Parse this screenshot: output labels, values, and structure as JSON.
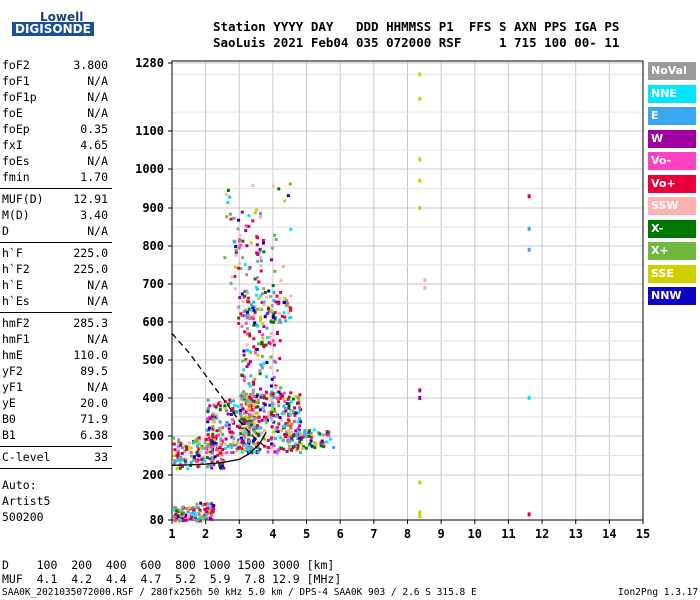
{
  "logo": {
    "line1": "Lowell",
    "line2": "DIGISONDE"
  },
  "header": {
    "line1": "Station YYYY DAY   DDD HHMMSS P1  FFS S AXN PPS IGA PS",
    "line2": "SaoLuis 2021 Feb04 035 072000 RSF     1 715 100 00- 11"
  },
  "params": [
    [
      {
        "name": "foF2",
        "value": "3.800"
      },
      {
        "name": "foF1",
        "value": "N/A"
      },
      {
        "name": "foF1p",
        "value": "N/A"
      },
      {
        "name": "foE",
        "value": "N/A"
      },
      {
        "name": "foEp",
        "value": "0.35"
      },
      {
        "name": "fxI",
        "value": "4.65"
      },
      {
        "name": "foEs",
        "value": "N/A"
      },
      {
        "name": "fmin",
        "value": "1.70"
      }
    ],
    [
      {
        "name": "MUF(D)",
        "value": "12.91"
      },
      {
        "name": "M(D)",
        "value": "3.40"
      },
      {
        "name": "D",
        "value": "N/A"
      }
    ],
    [
      {
        "name": "h`F",
        "value": "225.0"
      },
      {
        "name": "h`F2",
        "value": "225.0"
      },
      {
        "name": "h`E",
        "value": "N/A"
      },
      {
        "name": "h`Es",
        "value": "N/A"
      }
    ],
    [
      {
        "name": "hmF2",
        "value": "285.3"
      },
      {
        "name": "hmF1",
        "value": "N/A"
      },
      {
        "name": "hmE",
        "value": "110.0"
      },
      {
        "name": "yF2",
        "value": "89.5"
      },
      {
        "name": "yF1",
        "value": "N/A"
      },
      {
        "name": "yE",
        "value": "20.0"
      },
      {
        "name": "B0",
        "value": "71.9"
      },
      {
        "name": "B1",
        "value": "6.38"
      }
    ],
    [
      {
        "name": "C-level",
        "value": "33"
      }
    ]
  ],
  "artist": {
    "line1": "Auto:",
    "line2": "Artist5",
    "line3": "500200"
  },
  "legend": [
    {
      "label": "NoVal",
      "color": "#9a9a9a"
    },
    {
      "label": "NNE",
      "color": "#00e6ff"
    },
    {
      "label": "E",
      "color": "#3aa6f0"
    },
    {
      "label": "W",
      "color": "#a000a0"
    },
    {
      "label": "Vo-",
      "color": "#ff40c0"
    },
    {
      "label": "Vo+",
      "color": "#e8003c"
    },
    {
      "label": "SSW",
      "color": "#ffb0b0"
    },
    {
      "label": "X-",
      "color": "#007800"
    },
    {
      "label": "X+",
      "color": "#70b840"
    },
    {
      "label": "SSE",
      "color": "#d0d000"
    },
    {
      "label": "NNW",
      "color": "#1000c0"
    }
  ],
  "bottom_table": {
    "line1": "D    100  200  400  600  800 1000 1500 3000 [km]",
    "line2": "MUF  4.1  4.2  4.4  4.7  5.2  5.9  7.8 12.9 [MHz]"
  },
  "footer": {
    "left": "SAA0K_2021035072000.RSF / 280fx256h 50 kHz 5.0 km / DPS-4 SAA0K 903 / 2.6 S 315.8 E",
    "right": "Ion2Png 1.3.17"
  },
  "chart_data": {
    "type": "scatter",
    "x_ticks": [
      "1",
      "2",
      "3",
      "4",
      "5",
      "6",
      "7",
      "8",
      "9",
      "10",
      "11",
      "12",
      "13",
      "14",
      "15"
    ],
    "y_ticks": [
      "80",
      "200",
      "300",
      "400",
      "500",
      "600",
      "700",
      "800",
      "900",
      "1000",
      "1100",
      "1280"
    ],
    "xlim": [
      1,
      15
    ],
    "y_scale": "piecewise",
    "grid": true,
    "traces": [
      {
        "style": "solid",
        "points": [
          [
            1.0,
            225
          ],
          [
            1.5,
            226
          ],
          [
            2.0,
            228
          ],
          [
            2.5,
            232
          ],
          [
            3.0,
            240
          ],
          [
            3.3,
            255
          ],
          [
            3.6,
            280
          ],
          [
            3.8,
            310
          ]
        ]
      },
      {
        "style": "dashed",
        "points": [
          [
            1.0,
            570
          ],
          [
            1.5,
            520
          ],
          [
            2.0,
            460
          ],
          [
            2.5,
            400
          ],
          [
            3.0,
            340
          ],
          [
            3.4,
            300
          ],
          [
            3.8,
            270
          ]
        ]
      }
    ],
    "clusters": [
      {
        "x": [
          1.0,
          1.6
        ],
        "y": [
          80,
          120
        ],
        "n": 60
      },
      {
        "x": [
          1.6,
          2.2
        ],
        "y": [
          80,
          130
        ],
        "n": 60
      },
      {
        "x": [
          1.0,
          2.5
        ],
        "y": [
          220,
          300
        ],
        "n": 160
      },
      {
        "x": [
          2.0,
          3.5
        ],
        "y": [
          260,
          400
        ],
        "n": 200
      },
      {
        "x": [
          3.0,
          4.8
        ],
        "y": [
          260,
          420
        ],
        "n": 320
      },
      {
        "x": [
          4.5,
          5.8
        ],
        "y": [
          270,
          320
        ],
        "n": 60
      },
      {
        "x": [
          3.0,
          4.2
        ],
        "y": [
          400,
          700
        ],
        "n": 160
      },
      {
        "x": [
          2.8,
          3.6
        ],
        "y": [
          600,
          900
        ],
        "n": 60
      },
      {
        "x": [
          3.9,
          4.6
        ],
        "y": [
          600,
          680
        ],
        "n": 30
      },
      {
        "x": [
          2.5,
          4.5
        ],
        "y": [
          700,
          980
        ],
        "n": 40
      }
    ],
    "columns": [
      {
        "x": 8.35,
        "points": [
          [
            1250,
            "SSE"
          ],
          [
            1185,
            "SSE"
          ],
          [
            1025,
            "SSE"
          ],
          [
            970,
            "SSE"
          ],
          [
            900,
            "SSE"
          ],
          [
            420,
            "W"
          ],
          [
            400,
            "W"
          ],
          [
            180,
            "SSE"
          ],
          [
            100,
            "SSE"
          ],
          [
            90,
            "SSE"
          ]
        ]
      },
      {
        "x": 8.5,
        "points": [
          [
            710,
            "SSW"
          ],
          [
            690,
            "SSW"
          ]
        ]
      },
      {
        "x": 11.6,
        "points": [
          [
            930,
            "Vo+"
          ],
          [
            845,
            "E"
          ],
          [
            790,
            "E"
          ],
          [
            400,
            "NNE"
          ],
          [
            95,
            "Vo+"
          ]
        ]
      }
    ]
  }
}
